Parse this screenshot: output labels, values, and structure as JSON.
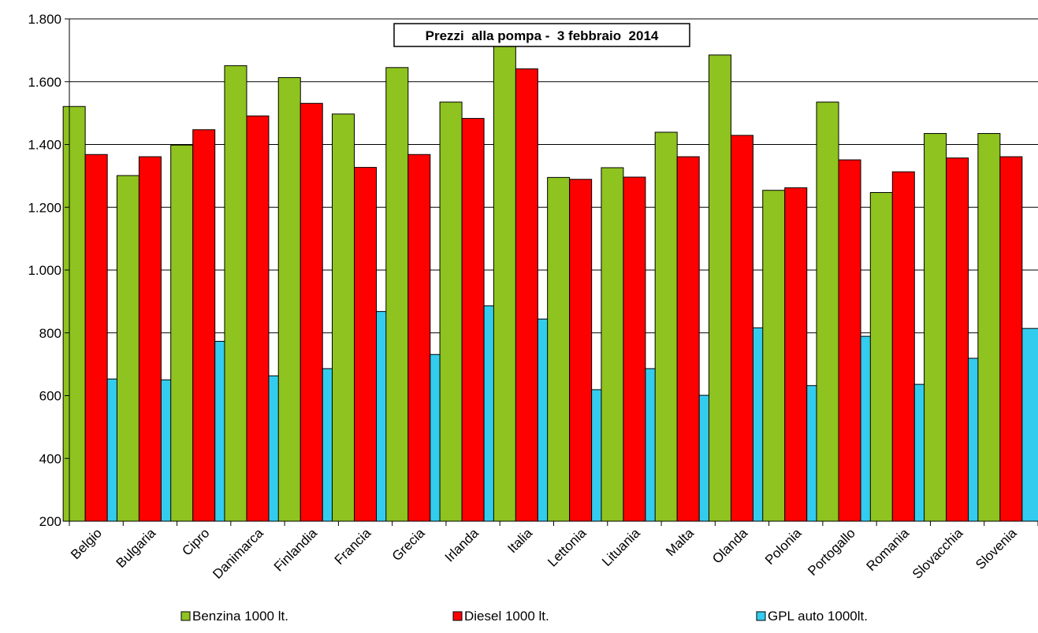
{
  "chart_data": {
    "type": "bar",
    "title": "Prezzi  alla pompa -  3 febbraio  2014",
    "xlabel": "",
    "ylabel": "",
    "ylim": [
      200,
      1800
    ],
    "yticks": [
      200,
      400,
      600,
      800,
      1000,
      1200,
      1400,
      1600,
      1800
    ],
    "ytick_labels": [
      "200",
      "400",
      "600",
      "800",
      "1.000",
      "1.200",
      "1.400",
      "1.600",
      "1.800"
    ],
    "grid": "horizontal",
    "legend_position": "bottom",
    "categories": [
      "Belgio",
      "Bulgaria",
      "Cipro",
      "Danimarca",
      "Finlandia",
      "Francia",
      "Grecia",
      "Irlanda",
      "Italia",
      "Lettonia",
      "Lituania",
      "Malta",
      "Olanda",
      "Polonia",
      "Portogallo",
      "Romania",
      "Slovacchia",
      "Slovenia"
    ],
    "series": [
      {
        "name": "Benzina 1000 lt.",
        "color": "#8fc31f",
        "values": [
          1521,
          1301,
          1398,
          1651,
          1613,
          1497,
          1645,
          1535,
          1713,
          1295,
          1326,
          1439,
          1685,
          1254,
          1535,
          1247,
          1435,
          1435
        ]
      },
      {
        "name": "Diesel 1000 lt.",
        "color": "#ff0000",
        "values": [
          1368,
          1361,
          1447,
          1491,
          1531,
          1327,
          1368,
          1483,
          1641,
          1289,
          1296,
          1361,
          1429,
          1262,
          1351,
          1313,
          1357,
          1361
        ]
      },
      {
        "name": "GPL auto 1000lt.",
        "color": "#33ccee",
        "values": [
          653,
          650,
          773,
          663,
          686,
          868,
          731,
          886,
          844,
          619,
          686,
          601,
          816,
          632,
          789,
          636,
          719,
          814
        ]
      }
    ]
  }
}
